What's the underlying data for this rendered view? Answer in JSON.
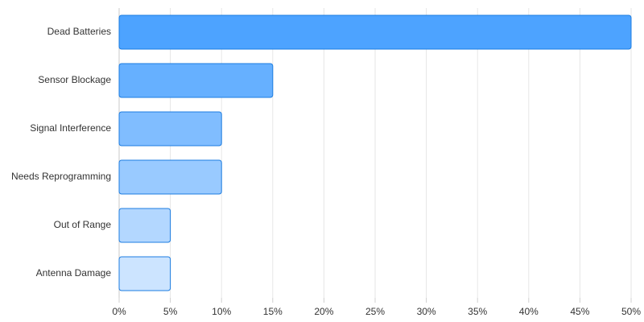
{
  "chart_data": {
    "type": "bar",
    "orientation": "horizontal",
    "categories": [
      "Dead Batteries",
      "Sensor Blockage",
      "Signal Interference",
      "Needs Reprogramming",
      "Out of Range",
      "Antenna Damage"
    ],
    "values": [
      50,
      15,
      10,
      10,
      5,
      5
    ],
    "colors": [
      "#4da3ff",
      "#66b0ff",
      "#80bdff",
      "#99caff",
      "#b3d7ff",
      "#cce4ff"
    ],
    "border_color": "#1c7ce0",
    "xlim": [
      0,
      50
    ],
    "xticks": [
      {
        "value": 0,
        "label": "0%"
      },
      {
        "value": 5,
        "label": "5%"
      },
      {
        "value": 10,
        "label": "10%"
      },
      {
        "value": 15,
        "label": "15%"
      },
      {
        "value": 20,
        "label": "20%"
      },
      {
        "value": 25,
        "label": "25%"
      },
      {
        "value": 30,
        "label": "30%"
      },
      {
        "value": 35,
        "label": "35%"
      },
      {
        "value": 40,
        "label": "40%"
      },
      {
        "value": 45,
        "label": "45%"
      },
      {
        "value": 50,
        "label": "50%"
      }
    ],
    "grid": true
  }
}
